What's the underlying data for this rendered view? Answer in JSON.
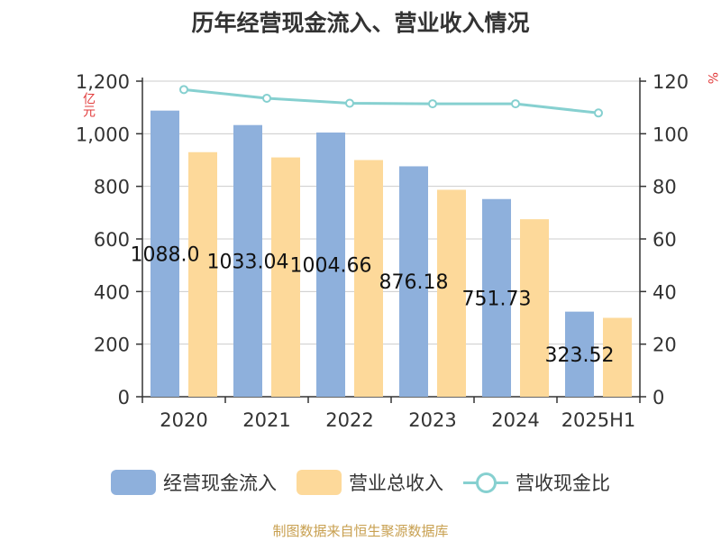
{
  "title": "历年经营现金流入、营业收入情况",
  "units": {
    "left": "亿元",
    "right": "%"
  },
  "source": "制图数据来自恒生聚源数据库",
  "colors": {
    "cash": "#8eb0dc",
    "revenue": "#fdd99a",
    "ratio": "#86d0d0",
    "axis": "#333333",
    "grid": "#cccccc",
    "unit": "#e23b3b"
  },
  "chart_data": {
    "type": "bar",
    "categories": [
      "2020",
      "2021",
      "2022",
      "2023",
      "2024",
      "2025H1"
    ],
    "series": [
      {
        "name": "经营现金流入",
        "type": "bar",
        "axis": "left",
        "values": [
          1088.0,
          1033.04,
          1004.66,
          876.18,
          751.73,
          323.52
        ],
        "labels": [
          "1088.0",
          "1033.04",
          "1004.66",
          "876.18",
          "751.73",
          "323.52"
        ]
      },
      {
        "name": "营业总收入",
        "type": "bar",
        "axis": "left",
        "values": [
          930,
          910,
          900,
          787,
          675,
          300
        ]
      },
      {
        "name": "营收现金比",
        "type": "line",
        "axis": "right",
        "values": [
          116.8,
          113.5,
          111.6,
          111.4,
          111.4,
          107.9
        ]
      }
    ],
    "left_axis": {
      "min": 0,
      "max": 1200,
      "ticks": [
        0,
        200,
        400,
        600,
        800,
        1000,
        1200
      ],
      "tick_labels": [
        "0",
        "200",
        "400",
        "600",
        "800",
        "1,000",
        "1,200"
      ]
    },
    "right_axis": {
      "min": 0,
      "max": 120,
      "ticks": [
        0,
        20,
        40,
        60,
        80,
        100,
        120
      ],
      "tick_labels": [
        "0",
        "20",
        "40",
        "60",
        "80",
        "100",
        "120"
      ]
    },
    "grid": true,
    "legend_position": "bottom"
  }
}
